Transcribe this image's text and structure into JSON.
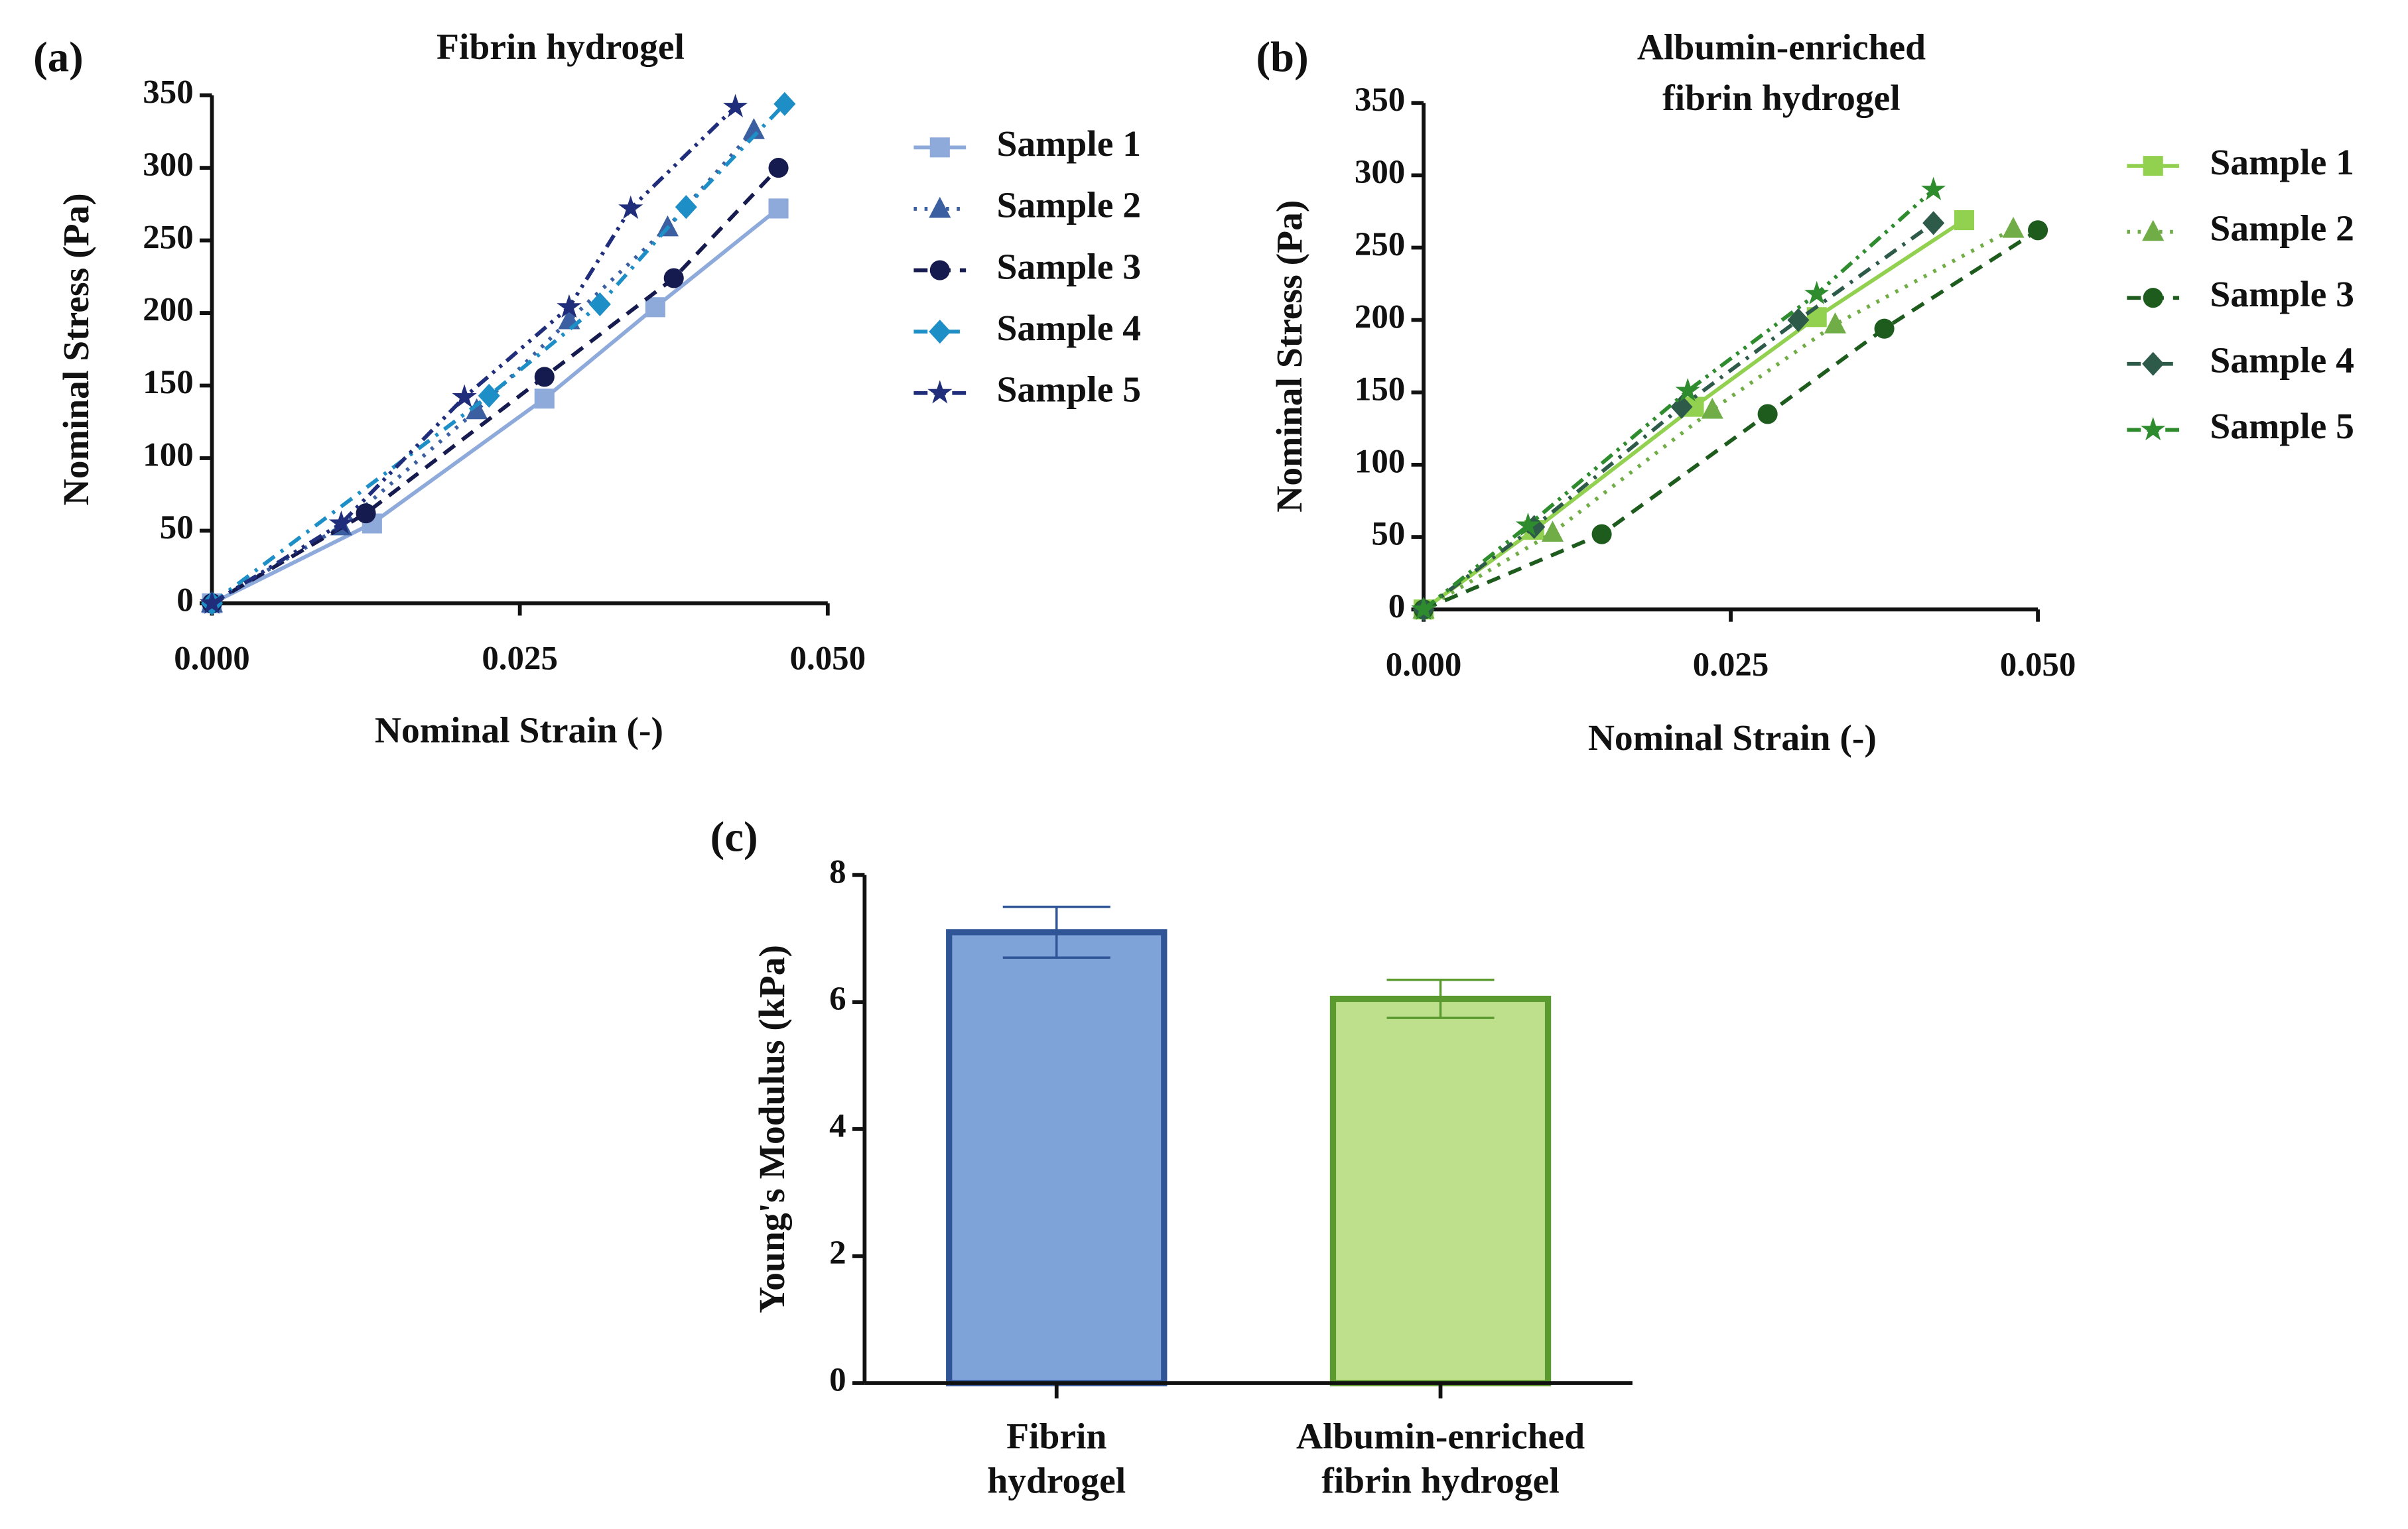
{
  "chart_data": [
    {
      "type": "line",
      "label": "(a)",
      "title": "Fibrin hydrogel",
      "xlabel": "Nominal Strain (-)",
      "ylabel": "Nominal Stress (Pa)",
      "xlim": [
        0,
        0.05
      ],
      "xticks": [
        {
          "value": 0,
          "label": "0.000"
        },
        {
          "value": 0.025,
          "label": "0.025"
        },
        {
          "value": 0.05,
          "label": "0.050"
        }
      ],
      "ylim": [
        0,
        350
      ],
      "yticks": [
        0,
        50,
        100,
        150,
        200,
        250,
        300,
        350
      ],
      "series": [
        {
          "name": "Sample 1",
          "color": "#8eaadb",
          "x": [
            0,
            0.013,
            0.027,
            0.036,
            0.046
          ],
          "values": [
            0,
            55,
            141,
            204,
            272
          ]
        },
        {
          "name": "Sample 2",
          "color": "#3b5fa0",
          "x": [
            0,
            0.0105,
            0.0215,
            0.029,
            0.037,
            0.044
          ],
          "values": [
            0,
            53,
            133,
            195,
            259,
            326
          ]
        },
        {
          "name": "Sample 3",
          "color": "#151a4f",
          "x": [
            0,
            0.0125,
            0.027,
            0.0375,
            0.046
          ],
          "values": [
            0,
            62,
            156,
            224,
            300
          ]
        },
        {
          "name": "Sample 4",
          "color": "#1e8fc6",
          "x": [
            0,
            0.0225,
            0.0315,
            0.0385,
            0.0465
          ],
          "values": [
            0,
            143,
            206,
            273,
            344
          ]
        },
        {
          "name": "Sample 5",
          "color": "#1f2d7a",
          "x": [
            0,
            0.0105,
            0.0205,
            0.029,
            0.034,
            0.0425
          ],
          "values": [
            0,
            55,
            142,
            204,
            272,
            342
          ]
        }
      ]
    },
    {
      "type": "line",
      "label": "(b)",
      "title": "Albumin-enriched fibrin hydrogel",
      "xlabel": "Nominal Strain (-)",
      "ylabel": "Nominal Stress (Pa)",
      "xlim": [
        0,
        0.05
      ],
      "xticks": [
        {
          "value": 0,
          "label": "0.000"
        },
        {
          "value": 0.025,
          "label": "0.025"
        },
        {
          "value": 0.05,
          "label": "0.050"
        }
      ],
      "ylim": [
        0,
        350
      ],
      "yticks": [
        0,
        50,
        100,
        150,
        200,
        250,
        300,
        350
      ],
      "series": [
        {
          "name": "Sample 1",
          "color": "#92d050",
          "x": [
            0,
            0.009,
            0.022,
            0.032,
            0.044
          ],
          "values": [
            0,
            55,
            140,
            202,
            269
          ]
        },
        {
          "name": "Sample 2",
          "color": "#70ad47",
          "x": [
            0,
            0.0105,
            0.0235,
            0.0335,
            0.048
          ],
          "values": [
            0,
            53,
            138,
            197,
            263
          ]
        },
        {
          "name": "Sample 3",
          "color": "#1e5c1e",
          "x": [
            0,
            0.0145,
            0.028,
            0.0375,
            0.05
          ],
          "values": [
            0,
            52,
            135,
            194,
            262
          ]
        },
        {
          "name": "Sample 4",
          "color": "#2e5a4a",
          "x": [
            0,
            0.009,
            0.021,
            0.0305,
            0.0415
          ],
          "values": [
            0,
            57,
            140,
            200,
            267
          ]
        },
        {
          "name": "Sample 5",
          "color": "#2e8b2e",
          "x": [
            0,
            0.0085,
            0.0215,
            0.032,
            0.0415
          ],
          "values": [
            0,
            58,
            151,
            218,
            290
          ]
        }
      ]
    },
    {
      "type": "bar",
      "label": "(c)",
      "ylabel": "Young's Modulus (kPa)",
      "categories": [
        "Fibrin hydrogel",
        "Albumin-enriched fibrin hydrogel"
      ],
      "values": [
        7.1,
        6.05
      ],
      "errors": [
        0.4,
        0.3
      ],
      "colors": [
        "#7ea3d8",
        "#bee08c"
      ],
      "edge_colors": [
        "#2f5597",
        "#5a9a2e"
      ],
      "ylim": [
        0,
        8
      ],
      "yticks": [
        0,
        2,
        4,
        6,
        8
      ]
    }
  ]
}
